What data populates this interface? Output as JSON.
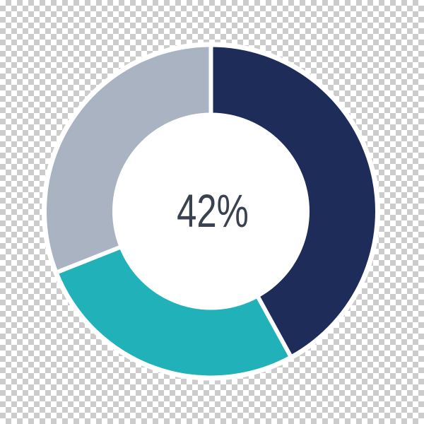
{
  "chart_data": {
    "type": "pie",
    "subtype": "donut",
    "title": "",
    "center_label": "42%",
    "center_label_color": "#3a414f",
    "values": [
      42,
      27,
      31
    ],
    "segment_names": [
      "navy",
      "teal",
      "gray"
    ],
    "colors": [
      "#1e2c5a",
      "#20b2b8",
      "#a9b3c1"
    ],
    "start_angle_deg": 0,
    "direction": "clockwise",
    "hole_ratio": 0.6,
    "separator_color": "#ffffff",
    "outer_border_color": "#ffffff",
    "hole_color": "#ffffff",
    "legend": "none",
    "background": "transparent-checkerboard",
    "checkerboard_colors": [
      "#ffffff",
      "#cccccc"
    ]
  }
}
